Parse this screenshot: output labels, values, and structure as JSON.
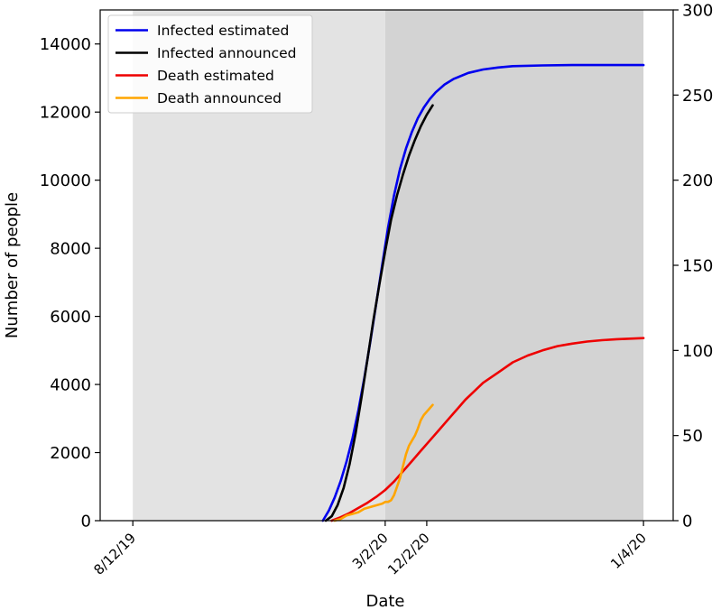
{
  "chart_data": {
    "type": "line",
    "title": "",
    "xlabel": "Date",
    "ylabel": "Number of people",
    "ylabel_right": "",
    "x_ticks": [
      {
        "day": -48,
        "label": "8/12/19"
      },
      {
        "day": 37,
        "label": "3/2/20"
      },
      {
        "day": 51,
        "label": "12/2/20"
      },
      {
        "day": 124,
        "label": "1/4/20"
      }
    ],
    "xlim": [
      -59,
      134
    ],
    "ylim_left": [
      0,
      15000
    ],
    "ylim_right": [
      0,
      300
    ],
    "y_ticks_left": [
      0,
      2000,
      4000,
      6000,
      8000,
      10000,
      12000,
      14000
    ],
    "y_ticks_right": [
      0,
      50,
      100,
      150,
      200,
      250,
      300
    ],
    "background_bands": [
      {
        "from": -48,
        "to": 37,
        "color": "#e3e3e3"
      },
      {
        "from": 37,
        "to": 124,
        "color": "#d3d3d3"
      }
    ],
    "legend_position": "upper-left",
    "series": [
      {
        "name": "Infected estimated",
        "color": "#0000ee",
        "axis": "left",
        "x": [
          16,
          18,
          20,
          22,
          24,
          26,
          28,
          30,
          32,
          34,
          36,
          38,
          40,
          42,
          44,
          46,
          48,
          50,
          52,
          54,
          57,
          60,
          65,
          70,
          75,
          80,
          90,
          100,
          110,
          124
        ],
        "y": [
          0,
          290,
          680,
          1160,
          1740,
          2430,
          3250,
          4200,
          5260,
          6390,
          7520,
          8620,
          9560,
          10330,
          10930,
          11420,
          11820,
          12130,
          12380,
          12580,
          12810,
          12970,
          13150,
          13250,
          13310,
          13350,
          13370,
          13380,
          13380,
          13380
        ]
      },
      {
        "name": "Infected announced",
        "color": "#000000",
        "axis": "left",
        "x": [
          17,
          19,
          21,
          23,
          25,
          27,
          29,
          31,
          33,
          35,
          37,
          39,
          41,
          43,
          45,
          47,
          49,
          51,
          53
        ],
        "y": [
          0,
          130,
          460,
          960,
          1660,
          2550,
          3600,
          4720,
          5870,
          6920,
          7920,
          8840,
          9560,
          10170,
          10720,
          11180,
          11580,
          11920,
          12200
        ]
      },
      {
        "name": "Death estimated",
        "color": "#ee0000",
        "axis": "right",
        "x": [
          19,
          22,
          25,
          28,
          31,
          34,
          37,
          40,
          43,
          46,
          49,
          52,
          55,
          58,
          61,
          64,
          67,
          70,
          75,
          80,
          85,
          90,
          95,
          100,
          105,
          110,
          115,
          124
        ],
        "y": [
          0,
          2,
          4.5,
          7.5,
          10.5,
          14,
          18,
          23,
          29,
          35,
          41,
          47,
          53,
          59,
          65,
          71,
          76,
          81,
          87,
          93,
          97,
          100,
          102.5,
          104,
          105.2,
          106,
          106.6,
          107.2
        ]
      },
      {
        "name": "Death announced",
        "color": "#ffa500",
        "axis": "right",
        "x": [
          20,
          22,
          24,
          26,
          28,
          30,
          32,
          34,
          36,
          37,
          38,
          39,
          40,
          41,
          42,
          43,
          44,
          45,
          46,
          47,
          48,
          49,
          50,
          51,
          52,
          53
        ],
        "y": [
          0,
          1,
          3,
          4,
          5,
          7,
          8,
          9,
          10,
          11,
          11,
          12,
          15,
          20,
          25,
          32,
          39,
          44,
          47,
          50,
          54,
          59,
          62,
          64,
          66,
          68
        ]
      }
    ]
  }
}
